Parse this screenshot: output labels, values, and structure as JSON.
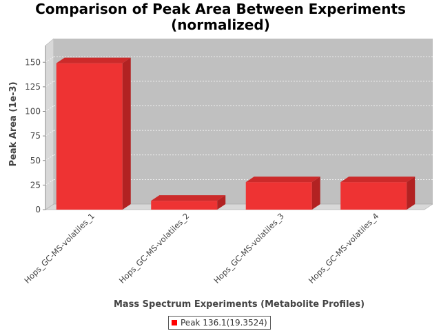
{
  "title_line1": "Comparison of Peak Area Between Experiments",
  "title_line2": "(normalized)",
  "chart_data": {
    "type": "bar",
    "title": "Comparison of Peak Area Between Experiments (normalized)",
    "xlabel": "Mass Spectrum Experiments (Metabolite Profiles)",
    "ylabel": "Peak Area (1e-3)",
    "categories": [
      "Hops_GC-MS-volatiles_1",
      "Hops_GC-MS-volatiles_2",
      "Hops_GC-MS-volatiles_3",
      "Hops_GC-MS-volatiles_4"
    ],
    "series": [
      {
        "name": "Peak 136.1(19.3524)",
        "values": [
          149,
          9,
          28,
          28
        ]
      }
    ],
    "ylim": [
      0,
      160
    ],
    "yticks": [
      0,
      25,
      50,
      75,
      100,
      125,
      150
    ],
    "grid": true,
    "legend_position": "bottom",
    "colors": {
      "bar_front": "#ee3333",
      "bar_top": "#cc2a2a",
      "bar_side": "#b22222",
      "plot_bg": "#c0c0c0",
      "wall": "#d8d8d8"
    }
  }
}
